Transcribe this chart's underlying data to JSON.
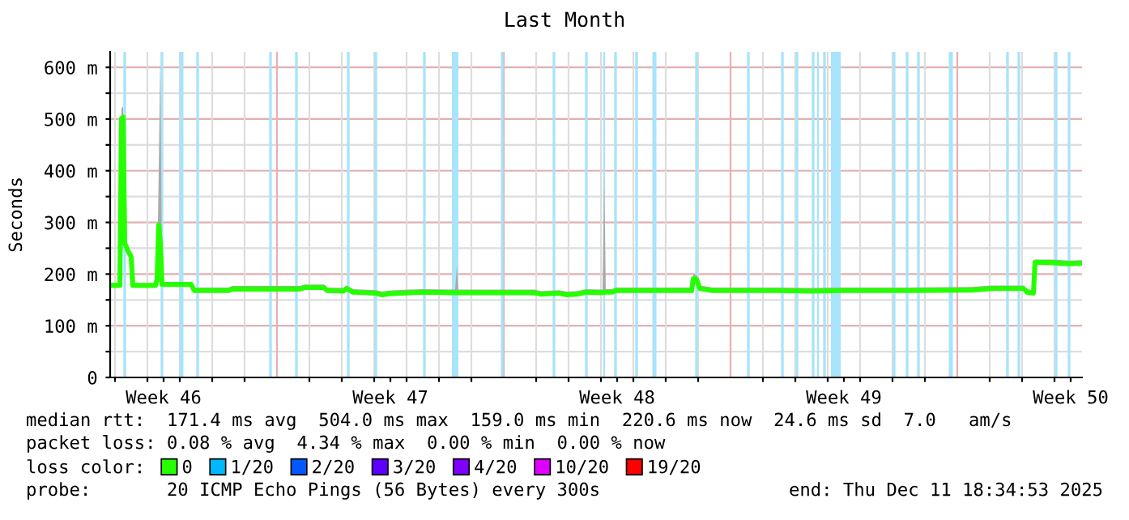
{
  "chart_data": {
    "type": "line",
    "title": "Last Month",
    "ylabel": "Seconds",
    "x": [
      "2025-11-11T20:24",
      "2025-11-12T03:36",
      "2025-11-12T04:48",
      "2025-11-12T06:00",
      "2025-11-12T07:12",
      "2025-11-12T09:36",
      "2025-11-12T12:00",
      "2025-11-12T13:12",
      "2025-11-13T06:00",
      "2025-11-13T07:12",
      "2025-11-13T08:24",
      "2025-11-13T09:36",
      "2025-11-13T10:48",
      "2025-11-14T08:24",
      "2025-11-14T10:48",
      "2025-11-15T12:12",
      "2025-11-15T14:36",
      "2025-11-17T16:48",
      "2025-11-17T20:24",
      "2025-11-18T10:48",
      "2025-11-18T13:12",
      "2025-11-19T01:12",
      "2025-11-19T03:36",
      "2025-11-19T08:24",
      "2025-11-20T01:12",
      "2025-11-20T06:00",
      "2025-11-20T10:48",
      "2025-11-21T10:48",
      "2025-11-22T12:00",
      "2025-11-22T13:12",
      "2025-11-22T14:24",
      "2025-11-23T10:48",
      "2025-11-24T22:48",
      "2025-11-25T03:36",
      "2025-11-25T16:48",
      "2025-11-25T22:48",
      "2025-11-26T06:00",
      "2025-11-26T13:12",
      "2025-11-27T01:12",
      "2025-11-27T02:24",
      "2025-11-27T03:36",
      "2025-11-27T08:24",
      "2025-11-27T10:48",
      "2025-11-29T19:12",
      "2025-11-29T20:24",
      "2025-11-29T22:48",
      "2025-11-30T01:12",
      "2025-11-30T10:48",
      "2025-12-02T10:48",
      "2025-12-03T10:48",
      "2025-12-04T10:48",
      "2025-12-05T10:48",
      "2025-12-06T10:48",
      "2025-12-08T10:48",
      "2025-12-09T01:12",
      "2025-12-10T01:12",
      "2025-12-10T03:36",
      "2025-12-10T08:24",
      "2025-12-10T09:36",
      "2025-12-10T22:48",
      "2025-12-11T10:48",
      "2025-12-11T20:24"
    ],
    "series": [
      {
        "name": "0",
        "color": "#26ff00",
        "values": [
          178,
          178,
          501,
          504,
          260,
          245,
          233,
          178,
          178,
          190,
          295,
          258,
          180,
          180,
          168,
          168,
          171,
          171,
          174,
          174,
          168,
          167,
          172,
          165,
          163,
          160,
          162,
          165,
          164,
          164,
          164,
          164,
          164,
          161,
          163,
          160,
          161,
          165,
          164,
          165,
          165,
          165,
          168,
          168,
          191,
          190,
          172,
          168,
          168,
          167,
          168,
          168,
          168,
          169,
          172,
          172,
          165,
          163,
          223,
          222,
          220,
          221
        ],
        "lower": [
          176,
          176,
          490,
          500,
          250,
          240,
          230,
          176,
          176,
          185,
          260,
          240,
          178,
          178,
          166,
          166,
          169,
          169,
          172,
          172,
          166,
          165,
          170,
          163,
          161,
          158,
          160,
          163,
          162,
          162,
          162,
          162,
          162,
          159,
          161,
          158,
          159,
          163,
          162,
          163,
          163,
          163,
          166,
          166,
          185,
          185,
          170,
          166,
          166,
          165,
          166,
          166,
          166,
          167,
          170,
          170,
          163,
          161,
          220,
          220,
          218,
          219
        ],
        "upper": [
          182,
          182,
          520,
          525,
          270,
          255,
          240,
          182,
          182,
          200,
          400,
          630,
          185,
          185,
          174,
          174,
          177,
          177,
          180,
          180,
          174,
          173,
          178,
          171,
          169,
          166,
          168,
          171,
          170,
          215,
          170,
          170,
          170,
          167,
          169,
          166,
          167,
          171,
          170,
          394,
          171,
          171,
          174,
          174,
          200,
          198,
          178,
          174,
          174,
          173,
          174,
          174,
          174,
          175,
          178,
          178,
          171,
          169,
          228,
          228,
          226,
          227
        ]
      },
      {
        "name": "1/20",
        "color": "#00b8ff",
        "values": [
          null,
          null,
          null,
          null,
          null,
          null,
          null,
          null,
          null,
          null,
          null,
          null,
          null,
          null,
          null,
          null,
          null,
          null,
          null,
          null,
          null,
          null,
          null,
          null,
          null,
          null,
          null,
          null,
          null,
          null,
          null,
          null,
          null,
          null,
          null,
          null,
          null,
          null,
          null,
          null,
          null,
          null,
          null,
          null,
          null,
          null,
          null,
          null,
          null,
          null,
          null,
          null,
          null,
          null,
          null,
          null,
          null,
          null,
          null,
          null,
          null,
          null
        ]
      },
      {
        "name": "2/20",
        "color": "#0059ff",
        "values": [
          null,
          null,
          null,
          null,
          null,
          null,
          null,
          null,
          null,
          null,
          null,
          null,
          null,
          null,
          null,
          null,
          null,
          null,
          null,
          null,
          null,
          null,
          null,
          null,
          null,
          null,
          null,
          null,
          null,
          null,
          null,
          null,
          null,
          null,
          null,
          null,
          null,
          null,
          null,
          null,
          null,
          null,
          null,
          null,
          null,
          null,
          null,
          null,
          null,
          null,
          null,
          null,
          null,
          null,
          null,
          null,
          null,
          null,
          null,
          null,
          null,
          null
        ]
      },
      {
        "name": "3/20",
        "color": "#5e00ff",
        "values": [
          null,
          null,
          null,
          null,
          null,
          null,
          null,
          null,
          null,
          null,
          null,
          null,
          null,
          null,
          null,
          null,
          null,
          null,
          null,
          null,
          null,
          null,
          null,
          null,
          null,
          null,
          null,
          null,
          null,
          null,
          null,
          null,
          null,
          null,
          null,
          null,
          null,
          null,
          null,
          null,
          null,
          null,
          null,
          null,
          null,
          null,
          null,
          null,
          null,
          null,
          null,
          null,
          null,
          null,
          null,
          null,
          null,
          null,
          null,
          null,
          null,
          null
        ]
      },
      {
        "name": "4/20",
        "color": "#7e00ff",
        "values": [
          null,
          null,
          null,
          null,
          null,
          null,
          null,
          null,
          null,
          null,
          null,
          null,
          null,
          null,
          null,
          null,
          null,
          null,
          null,
          null,
          null,
          null,
          null,
          null,
          null,
          null,
          null,
          null,
          null,
          null,
          null,
          null,
          null,
          null,
          null,
          null,
          null,
          null,
          null,
          null,
          null,
          null,
          null,
          null,
          null,
          null,
          null,
          null,
          null,
          null,
          null,
          null,
          null,
          null,
          null,
          null,
          null,
          null,
          null,
          null,
          null,
          null
        ]
      },
      {
        "name": "10/20",
        "color": "#dd00ff",
        "values": [
          null,
          null,
          null,
          null,
          null,
          null,
          null,
          null,
          null,
          null,
          null,
          null,
          null,
          null,
          null,
          null,
          null,
          null,
          null,
          null,
          null,
          null,
          null,
          null,
          null,
          null,
          null,
          null,
          null,
          null,
          null,
          null,
          null,
          null,
          null,
          null,
          null,
          null,
          null,
          null,
          null,
          null,
          null,
          null,
          null,
          null,
          null,
          null,
          null,
          null,
          null,
          null,
          null,
          null,
          null,
          null,
          null,
          null,
          null,
          null,
          null,
          null
        ]
      },
      {
        "name": "19/20",
        "color": "#ff0000",
        "values": [
          null,
          null,
          null,
          null,
          null,
          null,
          null,
          null,
          null,
          null,
          null,
          null,
          null,
          null,
          null,
          null,
          null,
          null,
          null,
          null,
          null,
          null,
          null,
          null,
          null,
          null,
          null,
          null,
          null,
          null,
          null,
          null,
          null,
          null,
          null,
          null,
          null,
          null,
          null,
          null,
          null,
          null,
          null,
          null,
          null,
          null,
          null,
          null,
          null,
          null,
          null,
          null,
          null,
          null,
          null,
          null,
          null,
          null,
          null,
          null,
          null,
          null
        ]
      }
    ],
    "xlim": [
      "2025-11-11T20:24",
      "2025-12-11T20:24"
    ],
    "xticks": [
      {
        "value": "2025-11-13T12:00",
        "label": "Week 46"
      },
      {
        "value": "2025-11-20T12:00",
        "label": "Week 47"
      },
      {
        "value": "2025-11-27T12:00",
        "label": "Week 48"
      },
      {
        "value": "2025-12-04T12:00",
        "label": "Week 49"
      },
      {
        "value": "2025-12-11T12:00",
        "label": "Week 50"
      },
      {
        "value": "2025-11-12",
        "label": null
      },
      {
        "value": "2025-11-13",
        "label": null
      },
      {
        "value": "2025-11-14",
        "label": null
      },
      {
        "value": "2025-11-15",
        "label": null
      },
      {
        "value": "2025-11-16",
        "label": null
      },
      {
        "value": "2025-11-18",
        "label": null
      },
      {
        "value": "2025-11-19",
        "label": null
      },
      {
        "value": "2025-11-20",
        "label": null
      },
      {
        "value": "2025-11-21",
        "label": null
      },
      {
        "value": "2025-11-22",
        "label": null
      },
      {
        "value": "2025-11-23",
        "label": null
      },
      {
        "value": "2025-11-25",
        "label": null
      },
      {
        "value": "2025-11-26",
        "label": null
      },
      {
        "value": "2025-11-27",
        "label": null
      },
      {
        "value": "2025-11-28",
        "label": null
      },
      {
        "value": "2025-11-29",
        "label": null
      },
      {
        "value": "2025-11-30",
        "label": null
      },
      {
        "value": "2025-12-02",
        "label": null
      },
      {
        "value": "2025-12-03",
        "label": null
      },
      {
        "value": "2025-12-04",
        "label": null
      },
      {
        "value": "2025-12-05",
        "label": null
      },
      {
        "value": "2025-12-06",
        "label": null
      },
      {
        "value": "2025-12-07",
        "label": null
      },
      {
        "value": "2025-12-09",
        "label": null
      },
      {
        "value": "2025-12-10",
        "label": null
      },
      {
        "value": "2025-12-11",
        "label": null
      }
    ],
    "ylim": [
      0,
      630
    ],
    "yticks": [
      {
        "value": 0,
        "label": "0"
      },
      {
        "value": 100,
        "label": "100 m"
      },
      {
        "value": 200,
        "label": "200 m"
      },
      {
        "value": 300,
        "label": "300 m"
      },
      {
        "value": 400,
        "label": "400 m"
      },
      {
        "value": 500,
        "label": "500 m"
      },
      {
        "value": 600,
        "label": "600 m"
      },
      {
        "value": 50,
        "label": null
      },
      {
        "value": 150,
        "label": null
      },
      {
        "value": 250,
        "label": null
      },
      {
        "value": 350,
        "label": null
      },
      {
        "value": 450,
        "label": null
      },
      {
        "value": 550,
        "label": null
      }
    ],
    "grid": true,
    "ref_lines": [
      {
        "axis": "x",
        "value": "2025-11-17",
        "color": "#e8b0b0"
      },
      {
        "axis": "x",
        "value": "2025-11-24",
        "color": "#e8b0b0"
      },
      {
        "axis": "x",
        "value": "2025-12-01",
        "color": "#e8b0b0"
      },
      {
        "axis": "x",
        "value": "2025-12-08",
        "color": "#e8b0b0"
      }
    ],
    "bands": [
      {
        "axis": "x",
        "from": "2025-11-12T06:12",
        "to": "2025-11-12T08:12",
        "color": "#a8e4fa"
      },
      {
        "axis": "x",
        "from": "2025-11-13T09:48",
        "to": "2025-11-13T11:48",
        "color": "#a8e4fa"
      },
      {
        "axis": "x",
        "from": "2025-11-13T23:42",
        "to": "2025-11-14T02:42",
        "color": "#a8e4fa"
      },
      {
        "axis": "x",
        "from": "2025-11-14T12:12",
        "to": "2025-11-14T14:12",
        "color": "#a8e4fa"
      },
      {
        "axis": "x",
        "from": "2025-11-16T18:12",
        "to": "2025-11-16T20:12",
        "color": "#a8e4fa"
      },
      {
        "axis": "x",
        "from": "2025-11-17T13:24",
        "to": "2025-11-17T15:24",
        "color": "#a8e4fa"
      },
      {
        "axis": "x",
        "from": "2025-11-19T03:48",
        "to": "2025-11-19T05:48",
        "color": "#a8e4fa"
      },
      {
        "axis": "x",
        "from": "2025-11-20T00:12",
        "to": "2025-11-20T02:12",
        "color": "#a8e4fa"
      },
      {
        "axis": "x",
        "from": "2025-11-21T12:12",
        "to": "2025-11-21T14:12",
        "color": "#a8e4fa"
      },
      {
        "axis": "x",
        "from": "2025-11-22T09:36",
        "to": "2025-11-22T14:24",
        "color": "#a8e4fa"
      },
      {
        "axis": "x",
        "from": "2025-11-23T21:48",
        "to": "2025-11-23T23:48",
        "color": "#a8e4fa"
      },
      {
        "axis": "x",
        "from": "2025-11-25T12:12",
        "to": "2025-11-25T14:12",
        "color": "#a8e4fa"
      },
      {
        "axis": "x",
        "from": "2025-11-26T12:12",
        "to": "2025-11-26T14:12",
        "color": "#a8e4fa"
      },
      {
        "axis": "x",
        "from": "2025-11-27T01:42",
        "to": "2025-11-27T03:06",
        "color": "#a8e4fa"
      },
      {
        "axis": "x",
        "from": "2025-11-27T09:48",
        "to": "2025-11-27T11:48",
        "color": "#a8e4fa"
      },
      {
        "axis": "x",
        "from": "2025-11-28T01:24",
        "to": "2025-11-28T03:24",
        "color": "#a8e4fa"
      },
      {
        "axis": "x",
        "from": "2025-11-28T14:06",
        "to": "2025-11-28T17:06",
        "color": "#a8e4fa"
      },
      {
        "axis": "x",
        "from": "2025-11-29T21:48",
        "to": "2025-11-29T23:48",
        "color": "#a8e4fa"
      },
      {
        "axis": "x",
        "from": "2025-12-01T12:12",
        "to": "2025-12-01T14:12",
        "color": "#a8e4fa"
      },
      {
        "axis": "x",
        "from": "2025-12-02T13:24",
        "to": "2025-12-02T15:24",
        "color": "#a8e4fa"
      },
      {
        "axis": "x",
        "from": "2025-12-03T00:12",
        "to": "2025-12-03T02:12",
        "color": "#a8e4fa"
      },
      {
        "axis": "x",
        "from": "2025-12-03T12:12",
        "to": "2025-12-03T14:12",
        "color": "#a8e4fa"
      },
      {
        "axis": "x",
        "from": "2025-12-03T16:06",
        "to": "2025-12-03T17:30",
        "color": "#a8e4fa"
      },
      {
        "axis": "x",
        "from": "2025-12-03T20:36",
        "to": "2025-12-03T22:36",
        "color": "#a8e4fa"
      },
      {
        "axis": "x",
        "from": "2025-12-04T02:24",
        "to": "2025-12-04T09:36",
        "color": "#a8e4fa"
      },
      {
        "axis": "x",
        "from": "2025-12-06T00:12",
        "to": "2025-12-06T02:12",
        "color": "#a8e4fa"
      },
      {
        "axis": "x",
        "from": "2025-12-06T09:48",
        "to": "2025-12-06T11:48",
        "color": "#a8e4fa"
      },
      {
        "axis": "x",
        "from": "2025-12-06T18:12",
        "to": "2025-12-06T20:12",
        "color": "#a8e4fa"
      },
      {
        "axis": "x",
        "from": "2025-12-07T17:42",
        "to": "2025-12-07T20:42",
        "color": "#a8e4fa"
      },
      {
        "axis": "x",
        "from": "2025-12-09T12:12",
        "to": "2025-12-09T14:12",
        "color": "#a8e4fa"
      },
      {
        "axis": "x",
        "from": "2025-12-09T20:36",
        "to": "2025-12-09T22:36",
        "color": "#a8e4fa"
      },
      {
        "axis": "x",
        "from": "2025-12-11T00:12",
        "to": "2025-12-11T02:12",
        "color": "#a8e4fa"
      },
      {
        "axis": "x",
        "from": "2025-12-11T09:48",
        "to": "2025-12-11T11:48",
        "color": "#a8e4fa"
      }
    ],
    "legend": "bottom",
    "annotations": [
      "median rtt:  171.4 ms avg  504.0 ms max  159.0 ms min  220.6 ms now  24.6 ms sd  7.0   am/s",
      "packet loss: 0.08 % avg  4.34 % max  0.00 % min  0.00 % now",
      "loss color:",
      "probe:       20 ICMP Echo Pings (56 Bytes) every 300s",
      "end: Thu Dec 11 18:34:53 2025"
    ]
  }
}
